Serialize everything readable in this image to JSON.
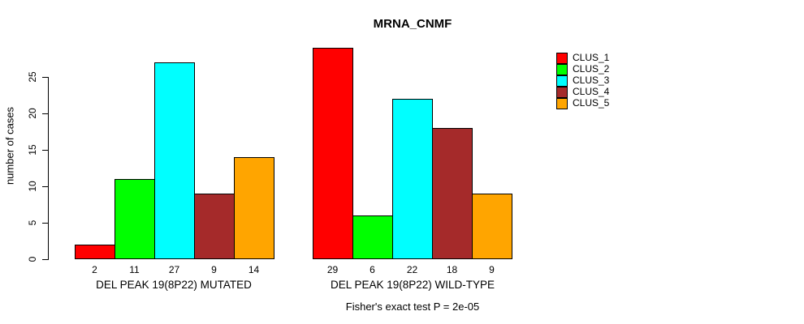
{
  "title": "MRNA_CNMF",
  "footnote": "Fisher's exact test P = 2e-05",
  "chart_data": {
    "type": "bar",
    "title": "MRNA_CNMF",
    "xlabel": "",
    "ylabel": "number of cases",
    "yticks": [
      0,
      5,
      10,
      15,
      20,
      25
    ],
    "ylim": [
      0,
      29
    ],
    "grid": false,
    "legend_position": "right-outside",
    "legend_entries": [
      "CLUS_1",
      "CLUS_2",
      "CLUS_3",
      "CLUS_4",
      "CLUS_5"
    ],
    "colors": [
      "#ff0000",
      "#00ff00",
      "#00ffff",
      "#a52a2a",
      "#ffa500"
    ],
    "groups": [
      {
        "label": "DEL PEAK 19(8P22) MUTATED",
        "values": [
          2,
          11,
          27,
          9,
          14
        ]
      },
      {
        "label": "DEL PEAK 19(8P22) WILD-TYPE",
        "values": [
          29,
          6,
          22,
          18,
          9
        ]
      }
    ],
    "bar_value_labels_shown": true,
    "footnote": "Fisher's exact test P = 2e-05"
  }
}
